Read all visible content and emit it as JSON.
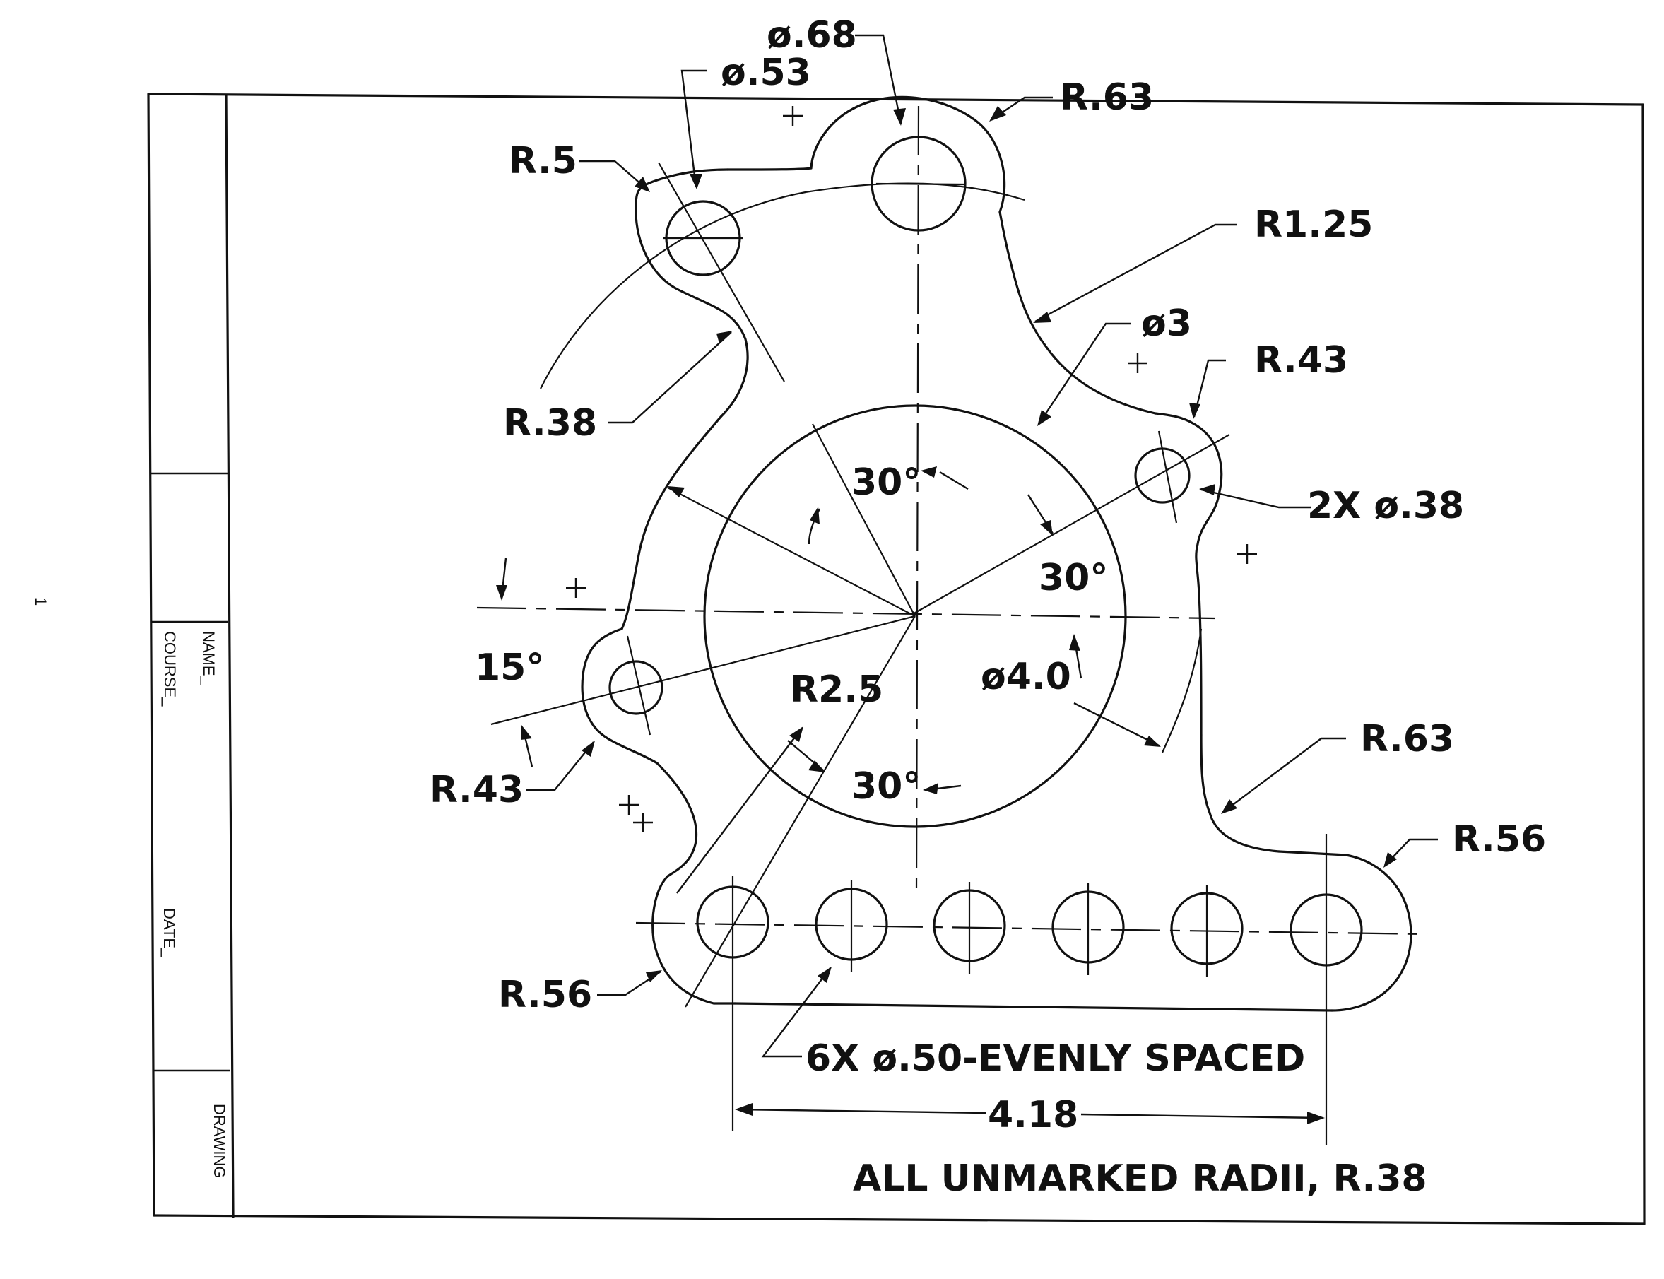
{
  "page_mark": "1",
  "title_block": {
    "name_label": "NAME_",
    "course_label": "COURSE_",
    "date_label": "DATE_",
    "drawing_label": "DRAWING"
  },
  "labels": {
    "dia_68": "ø.68",
    "dia_53": "ø.53",
    "r_63_top": "R.63",
    "r_5": "R.5",
    "r_1_25": "R1.25",
    "dia_3": "ø3",
    "r_43_right": "R.43",
    "r_38": "R.38",
    "two_x_dia_38": "2X  ø.38",
    "ang_30_top": "30°",
    "ang_30_right": "30°",
    "ang_15": "15°",
    "r_2_5": "R2.5",
    "dia_4_0": "ø4.0",
    "r_63_right": "R.63",
    "r_43_left": "R.43",
    "ang_30_bottom": "30°",
    "r_56_right": "R.56",
    "r_56_left": "R.56",
    "six_holes": "6X  ø.50-EVENLY  SPACED",
    "dim_4_18": "4.18",
    "note": "ALL  UNMARKED  RADII,  R.38"
  }
}
